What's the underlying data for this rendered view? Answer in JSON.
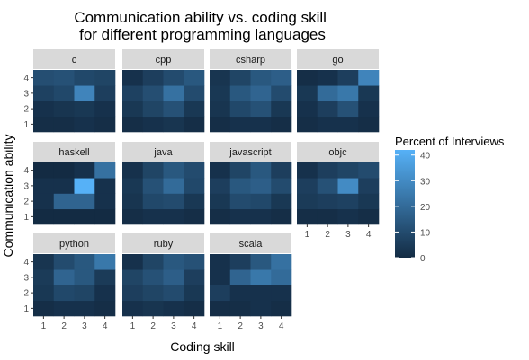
{
  "chart_data": {
    "type": "heatmap",
    "title": "Communication ability vs. coding skill\nfor different programming languages",
    "xlabel": "Coding skill",
    "ylabel": "Communication ability",
    "x_categories": [
      "1",
      "2",
      "3",
      "4"
    ],
    "y_categories": [
      "1",
      "2",
      "3",
      "4"
    ],
    "legend": {
      "title": "Percent of Interviews",
      "ticks": [
        0,
        10,
        20,
        30,
        40
      ],
      "range": [
        0,
        42
      ],
      "low_color": "#132B43",
      "high_color": "#56B1F7",
      "placement": "right"
    },
    "panels": [
      {
        "name": "c",
        "values": [
          [
            1,
            1,
            2,
            1
          ],
          [
            2,
            3,
            4,
            2
          ],
          [
            7,
            9,
            28,
            6
          ],
          [
            11,
            12,
            9,
            8
          ]
        ]
      },
      {
        "name": "cpp",
        "values": [
          [
            1,
            2,
            3,
            1
          ],
          [
            4,
            8,
            12,
            4
          ],
          [
            7,
            11,
            22,
            10
          ],
          [
            2,
            6,
            10,
            14
          ]
        ]
      },
      {
        "name": "csharp",
        "values": [
          [
            1,
            2,
            2,
            1
          ],
          [
            3,
            9,
            12,
            4
          ],
          [
            4,
            14,
            18,
            10
          ],
          [
            3,
            8,
            14,
            16
          ]
        ]
      },
      {
        "name": "go",
        "values": [
          [
            1,
            2,
            2,
            1
          ],
          [
            2,
            6,
            12,
            2
          ],
          [
            4,
            20,
            24,
            4
          ],
          [
            1,
            2,
            6,
            28
          ]
        ]
      },
      {
        "name": "haskell",
        "values": [
          [
            0,
            0,
            0,
            0
          ],
          [
            2,
            18,
            18,
            2
          ],
          [
            2,
            2,
            42,
            2
          ],
          [
            0,
            0,
            2,
            22
          ]
        ]
      },
      {
        "name": "java",
        "values": [
          [
            1,
            2,
            2,
            1
          ],
          [
            3,
            9,
            10,
            4
          ],
          [
            4,
            12,
            20,
            9
          ],
          [
            2,
            8,
            14,
            10
          ]
        ]
      },
      {
        "name": "javascript",
        "values": [
          [
            1,
            2,
            2,
            1
          ],
          [
            4,
            10,
            9,
            4
          ],
          [
            6,
            14,
            16,
            10
          ],
          [
            2,
            8,
            14,
            6
          ]
        ]
      },
      {
        "name": "objc",
        "values": [
          [
            1,
            1,
            2,
            1
          ],
          [
            5,
            6,
            7,
            4
          ],
          [
            6,
            12,
            30,
            6
          ],
          [
            2,
            6,
            8,
            10
          ]
        ]
      },
      {
        "name": "python",
        "values": [
          [
            1,
            2,
            2,
            1
          ],
          [
            4,
            9,
            8,
            2
          ],
          [
            5,
            18,
            14,
            5
          ],
          [
            3,
            10,
            14,
            24
          ]
        ]
      },
      {
        "name": "ruby",
        "values": [
          [
            2,
            3,
            2,
            1
          ],
          [
            6,
            8,
            10,
            4
          ],
          [
            8,
            12,
            16,
            6
          ],
          [
            2,
            8,
            14,
            12
          ]
        ]
      },
      {
        "name": "scala",
        "values": [
          [
            1,
            1,
            2,
            1
          ],
          [
            6,
            2,
            2,
            2
          ],
          [
            2,
            18,
            24,
            20
          ],
          [
            2,
            6,
            14,
            22
          ]
        ]
      }
    ]
  }
}
